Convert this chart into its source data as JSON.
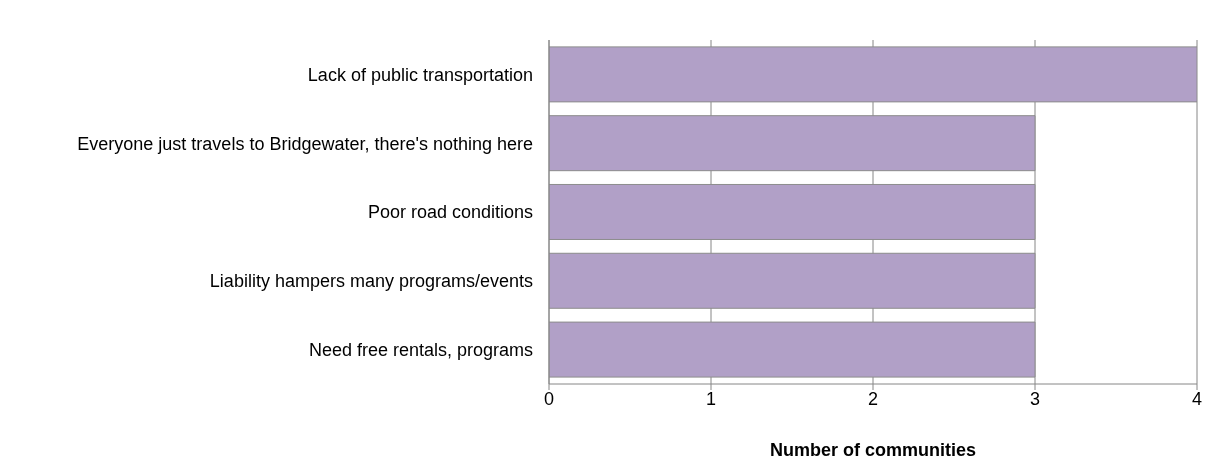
{
  "chart_data": {
    "type": "bar",
    "orientation": "horizontal",
    "xlabel": "Number of communities",
    "categories": [
      "Lack of public transportation",
      "Everyone just travels to Bridgewater, there's nothing here",
      "Poor road conditions",
      "Liability hampers many programs/events",
      "Need free rentals, programs"
    ],
    "values": [
      4,
      3,
      3,
      3,
      3
    ],
    "color": "#b1a0c7",
    "xlim": [
      0,
      4
    ],
    "xticks": [
      0,
      1,
      2,
      3,
      4
    ],
    "grid": "x"
  }
}
